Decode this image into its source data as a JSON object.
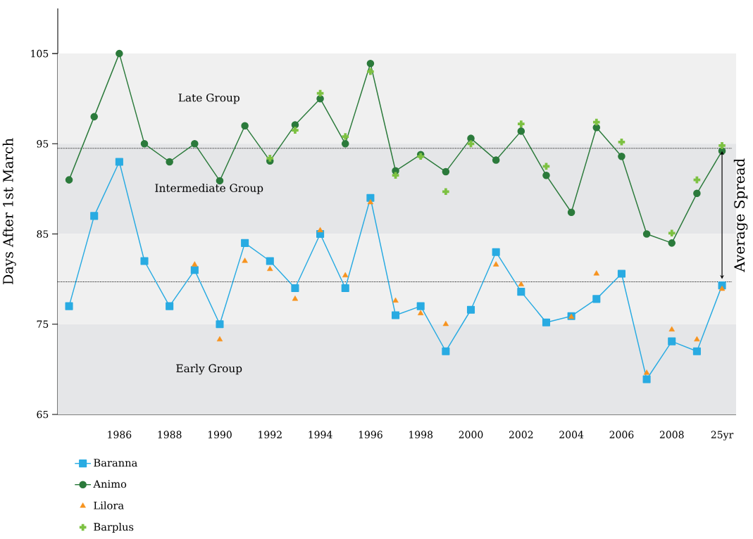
{
  "chart_data": {
    "type": "line",
    "ylabel": "Days After 1st March",
    "categories": [
      null,
      null,
      "1986",
      null,
      "1988",
      null,
      "1990",
      null,
      "1992",
      null,
      "1994",
      null,
      "1996",
      null,
      "1998",
      null,
      "2000",
      null,
      "2002",
      null,
      "2004",
      null,
      "2006",
      null,
      "2008",
      null,
      "25yr"
    ],
    "series": [
      {
        "name": "Baranna",
        "marker": "square",
        "color": "#29abe2",
        "values": [
          77,
          87,
          93,
          82,
          77,
          81,
          75,
          84,
          82,
          79,
          85,
          79,
          89,
          76,
          77,
          72,
          76.6,
          83,
          78.6,
          75.2,
          75.9,
          77.8,
          80.6,
          68.9,
          73.1,
          72,
          79.3
        ]
      },
      {
        "name": "Animo",
        "marker": "circle",
        "color": "#2b7a3b",
        "values": [
          91,
          98,
          105,
          95,
          93,
          95,
          90.9,
          97,
          93.1,
          97.1,
          100,
          95,
          103.9,
          92,
          93.8,
          91.9,
          95.6,
          93.2,
          96.4,
          91.5,
          87.4,
          96.8,
          93.6,
          85,
          84,
          89.5,
          94.2
        ]
      },
      {
        "name": "Lilora",
        "type": "scatter",
        "marker": "triangle",
        "color": "#f7931e",
        "values": [
          null,
          null,
          null,
          null,
          null,
          81.6,
          73.3,
          82,
          81.1,
          77.8,
          85.4,
          80.4,
          88.5,
          77.6,
          76.2,
          75,
          null,
          81.6,
          79.4,
          null,
          75.8,
          80.6,
          null,
          69.6,
          74.4,
          73.3,
          78.9
        ]
      },
      {
        "name": "Barplus",
        "type": "scatter",
        "marker": "cross",
        "color": "#7dc142",
        "values": [
          null,
          null,
          null,
          null,
          null,
          null,
          null,
          null,
          93.4,
          96.5,
          100.6,
          95.8,
          103,
          91.5,
          93.6,
          89.7,
          95,
          null,
          97.2,
          92.5,
          null,
          97.4,
          95.2,
          null,
          85.1,
          91,
          94.8
        ]
      }
    ],
    "ylim": [
      65,
      110
    ],
    "yticks": [
      65,
      75,
      85,
      95,
      105
    ],
    "bands": [
      {
        "axis": "y",
        "from": 95,
        "to": 105,
        "label": "Late Group",
        "color": "#f0f0f0"
      },
      {
        "axis": "y",
        "from": 85,
        "to": 95,
        "label": "Intermediate Group",
        "color": "#e5e6e8"
      },
      {
        "axis": "y",
        "from": 75,
        "to": 85,
        "color": "#f0f0f0"
      },
      {
        "axis": "y",
        "from": 65,
        "to": 75,
        "label": "Early Group",
        "color": "#e5e6e8"
      }
    ],
    "ref_lines": [
      {
        "axis": "y",
        "value": 94.5,
        "color": "#000000",
        "line_style": "dotted"
      },
      {
        "axis": "y",
        "value": 79.7,
        "color": "#000000",
        "line_style": "dotted"
      }
    ],
    "annotations": [
      "Average Spread"
    ],
    "legend": "bottom left"
  }
}
